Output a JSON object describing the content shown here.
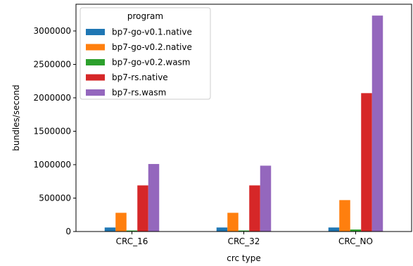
{
  "chart_data": {
    "type": "bar",
    "title": "",
    "xlabel": "crc type",
    "ylabel": "bundles/second",
    "categories": [
      "CRC_16",
      "CRC_32",
      "CRC_NO"
    ],
    "ylim": [
      0,
      3400000
    ],
    "yticks": [
      0,
      500000,
      1000000,
      1500000,
      2000000,
      2500000,
      3000000
    ],
    "ytick_labels": [
      "0",
      "500000",
      "1000000",
      "1500000",
      "2000000",
      "2500000",
      "3000000"
    ],
    "grid": false,
    "legend": {
      "title": "program",
      "placement": "upper-left"
    },
    "series": [
      {
        "name": "bp7-go-v0.1.native",
        "color": "#1f77b4",
        "values": [
          60000,
          60000,
          60000
        ]
      },
      {
        "name": "bp7-go-v0.2.native",
        "color": "#ff7f0e",
        "values": [
          280000,
          280000,
          470000
        ]
      },
      {
        "name": "bp7-go-v0.2.wasm",
        "color": "#2ca02c",
        "values": [
          15000,
          15000,
          30000
        ]
      },
      {
        "name": "bp7-rs.native",
        "color": "#d62728",
        "values": [
          690000,
          690000,
          2070000
        ]
      },
      {
        "name": "bp7-rs.wasm",
        "color": "#9467bd",
        "values": [
          1010000,
          985000,
          3230000
        ]
      }
    ]
  }
}
